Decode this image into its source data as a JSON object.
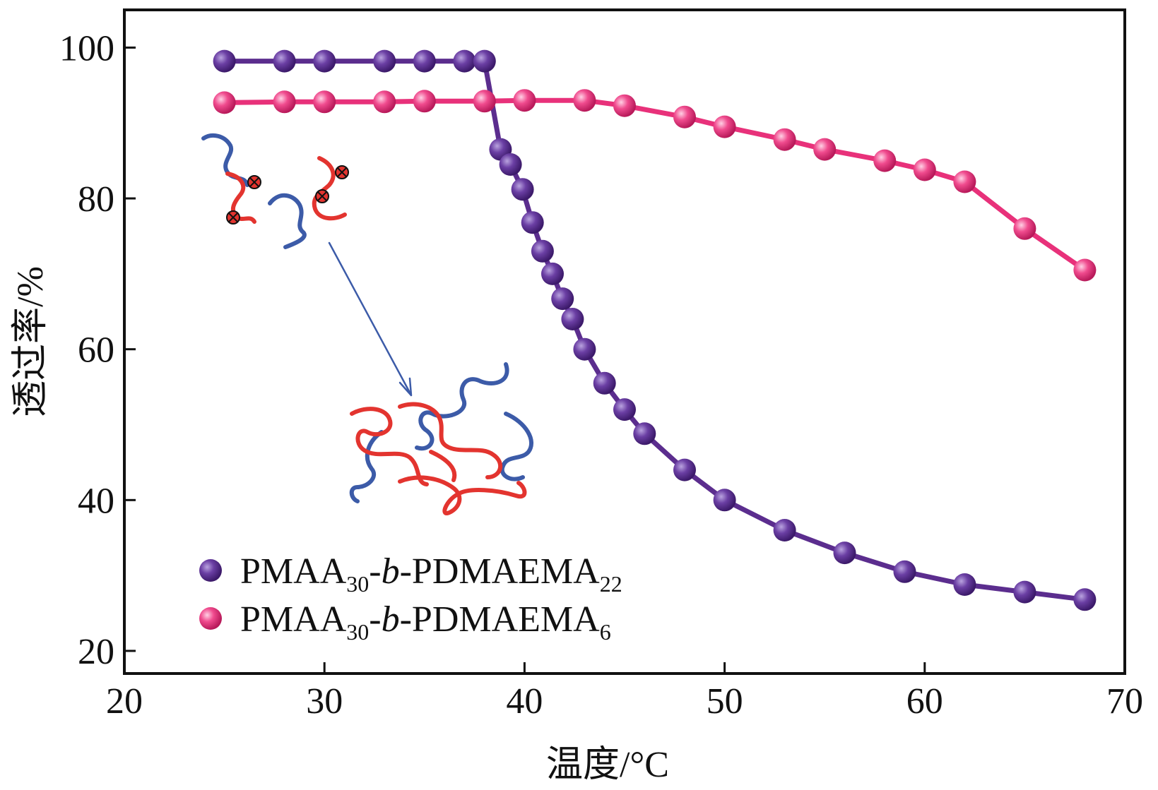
{
  "chart_data": {
    "type": "line",
    "xlabel": "温度/°C",
    "ylabel": "透过率/%",
    "xlim": [
      20,
      70
    ],
    "ylim": [
      17,
      105
    ],
    "xticks": [
      20,
      30,
      40,
      50,
      60,
      70
    ],
    "yticks": [
      20,
      40,
      60,
      80,
      100
    ],
    "xtick_labels": [
      "20",
      "30",
      "40",
      "50",
      "60",
      "70"
    ],
    "ytick_labels": [
      "20",
      "40",
      "60",
      "80",
      "100"
    ],
    "legend_position": "bottom-left",
    "series": [
      {
        "name": "PMAA30-b-PDMAEMA22",
        "label_main": "PMAA",
        "label_sub1": "30",
        "label_mid": "-",
        "label_italic": "b",
        "label_mid2": "-PDMAEMA",
        "label_sub2": "22",
        "color": "#5b2d8e",
        "points": [
          [
            25,
            98.2
          ],
          [
            28,
            98.2
          ],
          [
            30,
            98.2
          ],
          [
            33,
            98.2
          ],
          [
            35,
            98.2
          ],
          [
            37,
            98.2
          ],
          [
            38,
            98.2
          ],
          [
            38.8,
            86.5
          ],
          [
            39.3,
            84.5
          ],
          [
            39.9,
            81.2
          ],
          [
            40.4,
            76.8
          ],
          [
            40.9,
            73.0
          ],
          [
            41.4,
            70.0
          ],
          [
            41.9,
            66.7
          ],
          [
            42.4,
            64.0
          ],
          [
            43.0,
            60.0
          ],
          [
            44.0,
            55.5
          ],
          [
            45.0,
            52.0
          ],
          [
            46.0,
            48.8
          ],
          [
            48.0,
            44.0
          ],
          [
            50.0,
            40.0
          ],
          [
            53.0,
            36.0
          ],
          [
            56.0,
            33.0
          ],
          [
            59.0,
            30.5
          ],
          [
            62.0,
            28.8
          ],
          [
            65.0,
            27.8
          ],
          [
            68.0,
            26.8
          ]
        ]
      },
      {
        "name": "PMAA30-b-PDMAEMA6",
        "label_main": "PMAA",
        "label_sub1": "30",
        "label_mid": "-",
        "label_italic": "b",
        "label_mid2": "-PDMAEMA",
        "label_sub2": "6",
        "color": "#e8317a",
        "points": [
          [
            25,
            92.7
          ],
          [
            28,
            92.8
          ],
          [
            30,
            92.8
          ],
          [
            33,
            92.8
          ],
          [
            35,
            92.9
          ],
          [
            38,
            92.9
          ],
          [
            40,
            93.0
          ],
          [
            43,
            93.0
          ],
          [
            45,
            92.3
          ],
          [
            48,
            90.8
          ],
          [
            50,
            89.5
          ],
          [
            53,
            87.8
          ],
          [
            55,
            86.5
          ],
          [
            58,
            85.0
          ],
          [
            60,
            83.8
          ],
          [
            62,
            82.2
          ],
          [
            65,
            76.0
          ],
          [
            68,
            70.5
          ]
        ]
      }
    ]
  }
}
